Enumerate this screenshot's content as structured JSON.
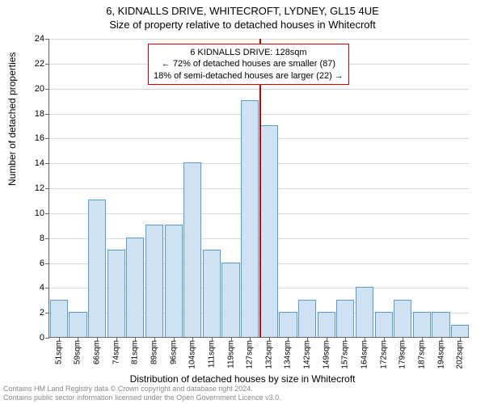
{
  "title": "6, KIDNALLS DRIVE, WHITECROFT, LYDNEY, GL15 4UE",
  "subtitle": "Size of property relative to detached houses in Whitecroft",
  "chart": {
    "type": "bar",
    "ylabel": "Number of detached properties",
    "xlabel": "Distribution of detached houses by size in Whitecroft",
    "ylim": [
      0,
      24
    ],
    "ytick_step": 2,
    "background_color": "#ffffff",
    "grid_color": "#666666",
    "bar_fill": "#cfe2f3",
    "bar_stroke": "#5b9bd5",
    "categories": [
      "51sqm",
      "59sqm",
      "66sqm",
      "74sqm",
      "81sqm",
      "89sqm",
      "96sqm",
      "104sqm",
      "111sqm",
      "119sqm",
      "127sqm",
      "132sqm",
      "134sqm",
      "142sqm",
      "149sqm",
      "157sqm",
      "164sqm",
      "172sqm",
      "179sqm",
      "187sqm",
      "194sqm",
      "202sqm"
    ],
    "values": [
      3,
      2,
      11,
      7,
      8,
      9,
      9,
      14,
      7,
      6,
      19,
      17,
      2,
      3,
      2,
      3,
      4,
      2,
      3,
      2,
      2,
      1
    ],
    "marker": {
      "index": 11,
      "color": "#cc0000"
    },
    "annotation": {
      "lines": [
        "6 KIDNALLS DRIVE: 128sqm",
        "← 72% of detached houses are smaller (87)",
        "18% of semi-detached houses are larger (22) →"
      ],
      "border_color": "#cc0000"
    }
  },
  "footer": {
    "line1": "Contains HM Land Registry data © Crown copyright and database right 2024.",
    "line2": "Contains public sector information licensed under the Open Government Licence v3.0."
  }
}
